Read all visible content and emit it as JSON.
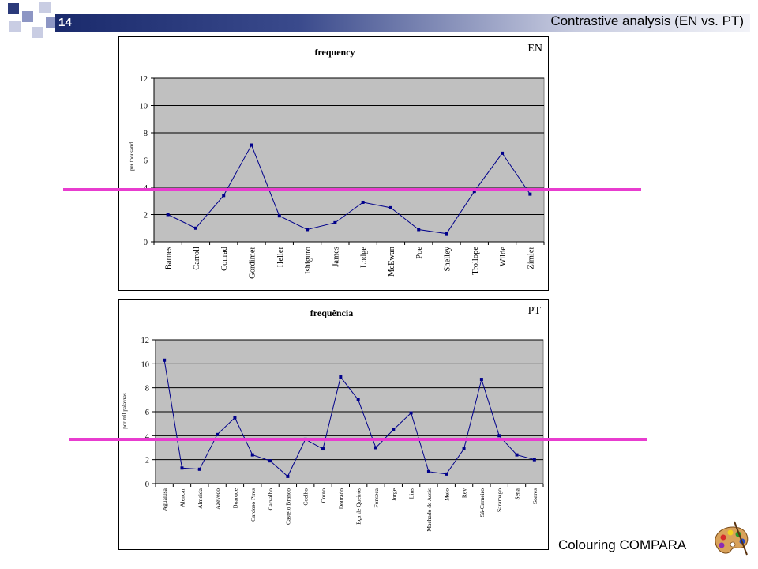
{
  "slide": {
    "number": "14",
    "title": "Contrastive analysis (EN vs. PT)",
    "footer": "Colouring COMPARA",
    "footer_icon": "palette-icon"
  },
  "colors": {
    "line": "#00008b",
    "plot_bg": "#c0c0c0",
    "highlight": "#e83ccf",
    "header_dark": "#1a2a6c"
  },
  "chart_data": [
    {
      "type": "line",
      "title": "frequency",
      "corner_label": "EN",
      "ylabel": "per thousand",
      "xlabel": "",
      "ylim": [
        0,
        12
      ],
      "yticks": [
        0,
        2,
        4,
        6,
        8,
        10,
        12
      ],
      "grid": true,
      "categories": [
        "Barnes",
        "Carroll",
        "Conrad",
        "Gordimer",
        "Heller",
        "Ishiguro",
        "James",
        "Lodge",
        "McEwan",
        "Poe",
        "Shelley",
        "Trollope",
        "Wilde",
        "Zimler"
      ],
      "values": [
        2.0,
        1.0,
        3.4,
        7.1,
        1.9,
        0.9,
        1.4,
        2.9,
        2.5,
        0.9,
        0.6,
        3.7,
        6.5,
        3.5
      ],
      "reference_line": 3.9
    },
    {
      "type": "line",
      "title": "frequência",
      "corner_label": "PT",
      "ylabel": "por mil palavras",
      "xlabel": "",
      "ylim": [
        0,
        12
      ],
      "yticks": [
        0,
        2,
        4,
        6,
        8,
        10,
        12
      ],
      "grid": true,
      "categories": [
        "Agualusa",
        "Alencar",
        "Almeida",
        "Azevedo",
        "Buarque",
        "Cardoso Pires",
        "Carvalho",
        "Castelo Branco",
        "Coelho",
        "Couto",
        "Dourado",
        "Eça de Queirós",
        "Fonseca",
        "Jorge",
        "Lins",
        "Machado de Assis",
        "Melo",
        "Rey",
        "Sá-Carneiro",
        "Saramago",
        "Sena",
        "Soares"
      ],
      "values": [
        10.3,
        1.3,
        1.2,
        4.1,
        5.5,
        2.4,
        1.9,
        0.6,
        3.7,
        2.9,
        8.9,
        7.0,
        3.0,
        4.5,
        5.9,
        1.0,
        0.8,
        2.9,
        8.7,
        4.0,
        2.4,
        2.0
      ],
      "reference_line": 3.7
    }
  ]
}
